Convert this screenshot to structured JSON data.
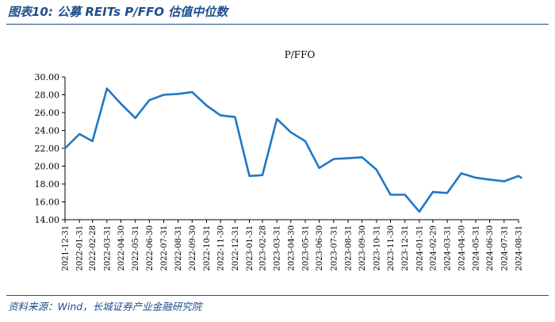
{
  "figure": {
    "title": "图表10:  公募 REITs P/FFO 估值中位数",
    "source": "资料来源：Wind，长城证券产业金融研究院"
  },
  "colors": {
    "accent": "#1f4e8c",
    "line": "#1f77c4"
  },
  "chart_data": {
    "type": "line",
    "title": "P/FFO",
    "xlabel": "",
    "ylabel": "",
    "ylim": [
      14,
      30
    ],
    "y_ticks": [
      "14.00",
      "16.00",
      "18.00",
      "20.00",
      "22.00",
      "24.00",
      "26.00",
      "28.00",
      "30.00"
    ],
    "grid": false,
    "legend": "none",
    "x_tick_labels": [
      "2021-12-31",
      "2022-01-31",
      "2022-02-28",
      "2022-03-31",
      "2022-04-30",
      "2022-05-31",
      "2022-06-30",
      "2022-07-31",
      "2022-08-31",
      "2022-09-30",
      "2022-10-31",
      "2022-11-30",
      "2022-12-31",
      "2023-01-31",
      "2023-02-28",
      "2023-03-31",
      "2023-04-30",
      "2023-05-31",
      "2023-06-30",
      "2023-07-31",
      "2023-08-31",
      "2023-09-30",
      "2023-10-31",
      "2023-11-30",
      "2023-12-31",
      "2024-01-31",
      "2024-02-29",
      "2024-03-31",
      "2024-04-30",
      "2024-05-31",
      "2024-06-30",
      "2024-07-31",
      "2024-08-31"
    ],
    "series": [
      {
        "x": [
          "2021-12-31",
          "2022-01-31",
          "2022-02-28",
          "2022-03-31",
          "2022-04-30",
          "2022-05-31",
          "2022-06-30",
          "2022-07-31",
          "2022-08-31",
          "2022-09-30",
          "2022-10-31",
          "2022-11-30",
          "2022-12-31",
          "2023-01-31",
          "2023-02-28",
          "2023-03-31",
          "2023-04-30",
          "2023-05-31",
          "2023-06-30",
          "2023-07-31",
          "2023-08-31",
          "2023-09-30",
          "2023-10-31",
          "2023-11-30",
          "2023-12-31",
          "2024-01-31",
          "2024-02-29",
          "2024-03-31",
          "2024-04-30",
          "2024-05-31",
          "2024-06-30",
          "2024-07-31",
          "2024-08-31",
          "2024-09-06"
        ],
        "values": [
          22.0,
          23.6,
          22.8,
          28.7,
          27.0,
          25.4,
          27.4,
          28.0,
          28.1,
          28.3,
          26.8,
          25.7,
          25.5,
          18.9,
          19.0,
          25.3,
          23.8,
          22.8,
          19.8,
          20.8,
          20.9,
          21.0,
          19.6,
          16.8,
          16.8,
          14.9,
          17.1,
          17.0,
          19.2,
          18.7,
          18.5,
          18.3,
          18.9,
          18.7
        ]
      }
    ]
  }
}
